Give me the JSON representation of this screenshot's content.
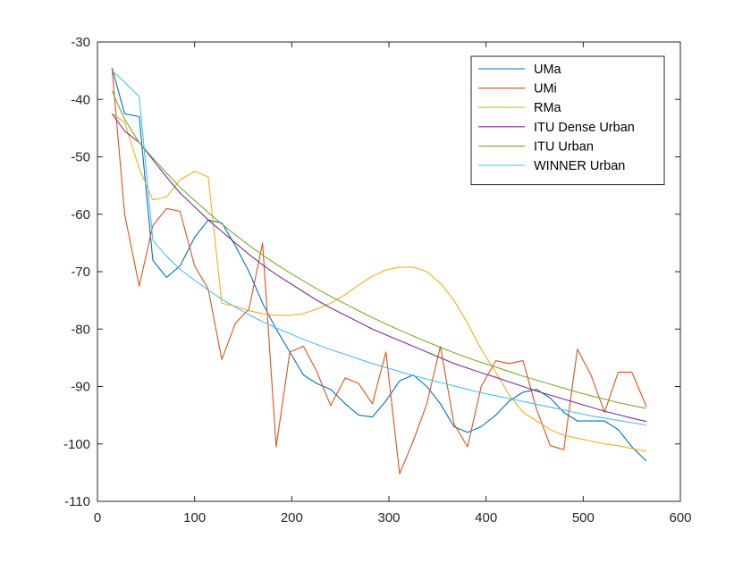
{
  "chart_data": {
    "type": "line",
    "title": "",
    "xlabel": "",
    "ylabel": "",
    "xlim": [
      0,
      600
    ],
    "ylim": [
      -110,
      -30
    ],
    "xticks": [
      0,
      100,
      200,
      300,
      400,
      500,
      600
    ],
    "yticks": [
      -110,
      -100,
      -90,
      -80,
      -70,
      -60,
      -50,
      -40,
      -30
    ],
    "xtick_labels": [
      "0",
      "100",
      "200",
      "300",
      "400",
      "500",
      "600"
    ],
    "ytick_labels": [
      "-110",
      "-100",
      "-90",
      "-80",
      "-70",
      "-60",
      "-50",
      "-40",
      "-30"
    ],
    "grid": false,
    "legend_position": "top-right",
    "series": [
      {
        "name": "UMa",
        "color": "#0072BD",
        "points": [
          [
            15,
            -34.5
          ],
          [
            28,
            -42.5
          ],
          [
            43,
            -43
          ],
          [
            57,
            -68
          ],
          [
            71,
            -71
          ],
          [
            85,
            -69
          ],
          [
            100,
            -64
          ],
          [
            114,
            -61
          ],
          [
            128,
            -61.5
          ],
          [
            142,
            -65.5
          ],
          [
            156,
            -70
          ],
          [
            170,
            -75.5
          ],
          [
            184,
            -80
          ],
          [
            198,
            -84
          ],
          [
            212,
            -88
          ],
          [
            226,
            -89.5
          ],
          [
            240,
            -90.5
          ],
          [
            255,
            -93
          ],
          [
            269,
            -95
          ],
          [
            283,
            -95.3
          ],
          [
            297,
            -92.5
          ],
          [
            311,
            -89
          ],
          [
            325,
            -88
          ],
          [
            339,
            -90
          ],
          [
            353,
            -93
          ],
          [
            367,
            -97
          ],
          [
            381,
            -98
          ],
          [
            395,
            -97
          ],
          [
            410,
            -95
          ],
          [
            424,
            -92.5
          ],
          [
            438,
            -91
          ],
          [
            452,
            -90.5
          ],
          [
            466,
            -92
          ],
          [
            480,
            -94.5
          ],
          [
            494,
            -96
          ],
          [
            508,
            -96
          ],
          [
            522,
            -96
          ],
          [
            536,
            -97.5
          ],
          [
            550,
            -100.5
          ],
          [
            565,
            -103
          ]
        ]
      },
      {
        "name": "UMi",
        "color": "#D95319",
        "points": [
          [
            15,
            -34.5
          ],
          [
            28,
            -60
          ],
          [
            43,
            -72.5
          ],
          [
            57,
            -62
          ],
          [
            71,
            -59
          ],
          [
            85,
            -59.5
          ],
          [
            100,
            -69
          ],
          [
            114,
            -73
          ],
          [
            128,
            -85.3
          ],
          [
            142,
            -79
          ],
          [
            156,
            -76.5
          ],
          [
            170,
            -65
          ],
          [
            184,
            -100.5
          ],
          [
            198,
            -84
          ],
          [
            212,
            -83
          ],
          [
            226,
            -87.5
          ],
          [
            240,
            -93.3
          ],
          [
            255,
            -88.5
          ],
          [
            269,
            -89.5
          ],
          [
            283,
            -93
          ],
          [
            297,
            -84
          ],
          [
            311,
            -105.2
          ],
          [
            325,
            -99.5
          ],
          [
            339,
            -93
          ],
          [
            353,
            -83
          ],
          [
            367,
            -96.5
          ],
          [
            381,
            -100.5
          ],
          [
            395,
            -90
          ],
          [
            410,
            -85.5
          ],
          [
            424,
            -86
          ],
          [
            438,
            -85.5
          ],
          [
            452,
            -94
          ],
          [
            466,
            -100.3
          ],
          [
            480,
            -101
          ],
          [
            494,
            -83.5
          ],
          [
            508,
            -88
          ],
          [
            522,
            -94.5
          ],
          [
            536,
            -87.5
          ],
          [
            550,
            -87.5
          ],
          [
            565,
            -93.5
          ]
        ]
      },
      {
        "name": "RMa",
        "color": "#EDB120",
        "points": [
          [
            15,
            -42.5
          ],
          [
            28,
            -44
          ],
          [
            43,
            -52
          ],
          [
            57,
            -57.5
          ],
          [
            71,
            -57
          ],
          [
            85,
            -54
          ],
          [
            100,
            -52.5
          ],
          [
            114,
            -53.5
          ],
          [
            128,
            -75.5
          ],
          [
            142,
            -76
          ],
          [
            156,
            -76.8
          ],
          [
            170,
            -77.3
          ],
          [
            184,
            -77.6
          ],
          [
            198,
            -77.6
          ],
          [
            212,
            -77.3
          ],
          [
            226,
            -76.5
          ],
          [
            240,
            -75.5
          ],
          [
            255,
            -74
          ],
          [
            269,
            -72.3
          ],
          [
            283,
            -70.8
          ],
          [
            297,
            -69.7
          ],
          [
            311,
            -69.2
          ],
          [
            325,
            -69.2
          ],
          [
            339,
            -70
          ],
          [
            353,
            -72
          ],
          [
            367,
            -75
          ],
          [
            381,
            -79
          ],
          [
            395,
            -83.5
          ],
          [
            410,
            -87.5
          ],
          [
            424,
            -91.5
          ],
          [
            438,
            -94.5
          ],
          [
            452,
            -96
          ],
          [
            466,
            -97.5
          ],
          [
            480,
            -98.5
          ],
          [
            494,
            -99
          ],
          [
            508,
            -99.5
          ],
          [
            522,
            -100
          ],
          [
            536,
            -100.3
          ],
          [
            550,
            -100.8
          ],
          [
            565,
            -101.3
          ]
        ]
      },
      {
        "name": "ITU Dense Urban",
        "color": "#7E2F8E",
        "points": [
          [
            15,
            -42.5
          ],
          [
            28,
            -45.5
          ],
          [
            43,
            -47.5
          ],
          [
            57,
            -50.5
          ],
          [
            71,
            -53.5
          ],
          [
            85,
            -56.3
          ],
          [
            100,
            -58.7
          ],
          [
            114,
            -61
          ],
          [
            128,
            -63
          ],
          [
            142,
            -65
          ],
          [
            156,
            -67
          ],
          [
            170,
            -68.8
          ],
          [
            184,
            -70.5
          ],
          [
            198,
            -72
          ],
          [
            212,
            -73.5
          ],
          [
            226,
            -75
          ],
          [
            240,
            -76.3
          ],
          [
            255,
            -77.6
          ],
          [
            269,
            -78.8
          ],
          [
            283,
            -80
          ],
          [
            297,
            -81
          ],
          [
            311,
            -82
          ],
          [
            325,
            -83
          ],
          [
            339,
            -84
          ],
          [
            353,
            -85
          ],
          [
            367,
            -86
          ],
          [
            381,
            -86.8
          ],
          [
            395,
            -87.6
          ],
          [
            410,
            -88.4
          ],
          [
            424,
            -89.2
          ],
          [
            438,
            -90
          ],
          [
            452,
            -90.8
          ],
          [
            466,
            -91.5
          ],
          [
            480,
            -92.2
          ],
          [
            494,
            -92.9
          ],
          [
            508,
            -93.6
          ],
          [
            522,
            -94.3
          ],
          [
            536,
            -94.9
          ],
          [
            550,
            -95.5
          ],
          [
            565,
            -96.1
          ]
        ]
      },
      {
        "name": "ITU Urban",
        "color": "#77AC30",
        "points": [
          [
            15,
            -38.5
          ],
          [
            28,
            -43.5
          ],
          [
            43,
            -47.5
          ],
          [
            57,
            -50.2
          ],
          [
            71,
            -52.8
          ],
          [
            85,
            -55.3
          ],
          [
            100,
            -57.6
          ],
          [
            114,
            -59.7
          ],
          [
            128,
            -61.7
          ],
          [
            142,
            -63.6
          ],
          [
            156,
            -65.4
          ],
          [
            170,
            -67.1
          ],
          [
            184,
            -68.7
          ],
          [
            198,
            -70.2
          ],
          [
            212,
            -71.6
          ],
          [
            226,
            -73
          ],
          [
            240,
            -74.3
          ],
          [
            255,
            -75.6
          ],
          [
            269,
            -76.8
          ],
          [
            283,
            -78
          ],
          [
            297,
            -79.1
          ],
          [
            311,
            -80.2
          ],
          [
            325,
            -81.2
          ],
          [
            339,
            -82.2
          ],
          [
            353,
            -83.2
          ],
          [
            367,
            -84.1
          ],
          [
            381,
            -85
          ],
          [
            395,
            -85.8
          ],
          [
            410,
            -86.6
          ],
          [
            424,
            -87.4
          ],
          [
            438,
            -88.2
          ],
          [
            452,
            -88.9
          ],
          [
            466,
            -89.6
          ],
          [
            480,
            -90.3
          ],
          [
            494,
            -91
          ],
          [
            508,
            -91.6
          ],
          [
            522,
            -92.2
          ],
          [
            536,
            -92.8
          ],
          [
            550,
            -93.3
          ],
          [
            565,
            -93.8
          ]
        ]
      },
      {
        "name": "WINNER Urban",
        "color": "#4DBEEE",
        "points": [
          [
            15,
            -35
          ],
          [
            28,
            -37
          ],
          [
            43,
            -39.5
          ],
          [
            57,
            -64.5
          ],
          [
            71,
            -67.3
          ],
          [
            85,
            -69.6
          ],
          [
            100,
            -71.5
          ],
          [
            114,
            -73.2
          ],
          [
            128,
            -74.8
          ],
          [
            142,
            -76.2
          ],
          [
            156,
            -77.5
          ],
          [
            170,
            -78.7
          ],
          [
            184,
            -79.8
          ],
          [
            198,
            -80.8
          ],
          [
            212,
            -81.8
          ],
          [
            226,
            -82.7
          ],
          [
            240,
            -83.6
          ],
          [
            255,
            -84.4
          ],
          [
            269,
            -85.2
          ],
          [
            283,
            -86
          ],
          [
            297,
            -86.7
          ],
          [
            311,
            -87.4
          ],
          [
            325,
            -88.1
          ],
          [
            339,
            -88.7
          ],
          [
            353,
            -89.3
          ],
          [
            367,
            -89.9
          ],
          [
            381,
            -90.5
          ],
          [
            395,
            -91.1
          ],
          [
            410,
            -91.6
          ],
          [
            424,
            -92.1
          ],
          [
            438,
            -92.6
          ],
          [
            452,
            -93.1
          ],
          [
            466,
            -93.6
          ],
          [
            480,
            -94.1
          ],
          [
            494,
            -94.6
          ],
          [
            508,
            -95.1
          ],
          [
            522,
            -95.5
          ],
          [
            536,
            -95.9
          ],
          [
            550,
            -96.3
          ],
          [
            565,
            -96.7
          ]
        ]
      }
    ]
  }
}
